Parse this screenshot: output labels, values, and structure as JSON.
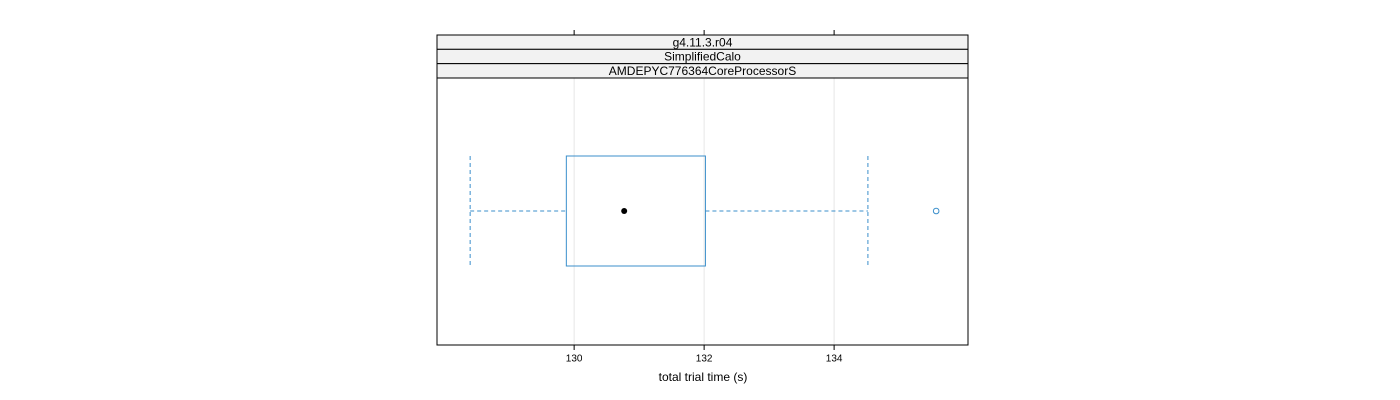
{
  "chart_data": {
    "type": "box",
    "strips": [
      "g4.11.3.r04",
      "SimplifiedCalo",
      "AMDEPYC776364CoreProcessorS"
    ],
    "xlabel": "total trial time (s)",
    "xlim": [
      127.89,
      136.06
    ],
    "xticks": [
      130,
      132,
      134
    ],
    "grid": true,
    "color": "#3b8fcb",
    "whisker_low": 128.4,
    "q1": 129.88,
    "median": 130.77,
    "q3": 132.02,
    "whisker_high": 134.52,
    "outliers": [
      135.57
    ]
  }
}
